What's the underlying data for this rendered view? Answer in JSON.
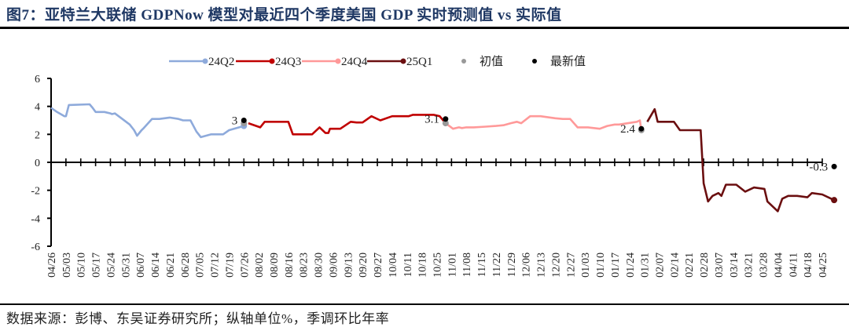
{
  "title": "图7：亚特兰大联储 GDPNow 模型对最近四个季度美国 GDP 实时预测值 vs 实际值",
  "source": "数据来源：彭博、东吴证券研究所；纵轴单位%，季调环比年率",
  "chart_data": {
    "type": "line",
    "title": "亚特兰大联储 GDPNow 模型对最近四个季度美国 GDP 实时预测值 vs 实际值",
    "xlabel": "",
    "ylabel": "%",
    "ylim": [
      -6,
      6
    ],
    "yticks": [
      "6",
      "4",
      "2",
      "0",
      "-2",
      "-4",
      "-6"
    ],
    "ytick_values": [
      6,
      4,
      2,
      0,
      -2,
      -4,
      -6
    ],
    "categories": [
      "04/26",
      "05/03",
      "05/10",
      "05/17",
      "05/24",
      "05/31",
      "06/07",
      "06/14",
      "06/21",
      "06/28",
      "07/05",
      "07/12",
      "07/19",
      "07/26",
      "08/02",
      "08/09",
      "08/16",
      "08/23",
      "08/30",
      "09/06",
      "09/13",
      "09/20",
      "09/27",
      "10/04",
      "10/11",
      "10/18",
      "10/25",
      "11/01",
      "11/08",
      "11/15",
      "11/22",
      "11/29",
      "12/06",
      "12/13",
      "12/20",
      "12/27",
      "01/03",
      "01/10",
      "01/17",
      "01/24",
      "01/31",
      "02/07",
      "02/14",
      "02/21",
      "02/28",
      "03/07",
      "03/14",
      "03/21",
      "03/28",
      "04/04",
      "04/11",
      "04/18",
      "04/25"
    ],
    "legend": [
      "24Q2",
      "24Q3",
      "24Q4",
      "25Q1",
      "初值",
      "最新值"
    ],
    "legend_position": "top",
    "grid": false,
    "series": [
      {
        "name": "24Q2",
        "color": "#8eaadb",
        "x": [
          0,
          0.4,
          0.9,
          1.0,
          1.2,
          2.6,
          2.8,
          3.0,
          3.6,
          4.0,
          4.1,
          4.3,
          4.8,
          5.3,
          5.6,
          5.8,
          6.1,
          6.2,
          6.8,
          7.3,
          8.0,
          8.6,
          8.9,
          9.4,
          9.8,
          10.1,
          10.8,
          11.2,
          11.6,
          12.0,
          13.0
        ],
        "values": [
          3.9,
          3.6,
          3.3,
          3.3,
          4.1,
          4.15,
          3.9,
          3.6,
          3.6,
          3.5,
          3.45,
          3.5,
          3.1,
          2.7,
          2.3,
          1.9,
          2.3,
          2.4,
          3.1,
          3.1,
          3.2,
          3.1,
          3.0,
          3.0,
          2.2,
          1.8,
          2.0,
          2.0,
          2.0,
          2.3,
          2.6
        ]
      },
      {
        "name": "24Q3",
        "color": "#c00000",
        "x": [
          13.3,
          14.1,
          14.4,
          15.1,
          16.0,
          16.3,
          17.0,
          17.6,
          18.1,
          18.5,
          18.7,
          18.8,
          19.5,
          20.2,
          20.6,
          21.0,
          21.6,
          22.2,
          23.0,
          23.5,
          24.1,
          24.4,
          25.0,
          25.8,
          26.2,
          26.6
        ],
        "values": [
          2.8,
          2.5,
          2.9,
          2.9,
          2.9,
          2.0,
          2.0,
          2.0,
          2.5,
          2.1,
          2.1,
          2.4,
          2.4,
          2.9,
          2.85,
          2.85,
          3.3,
          3.0,
          3.3,
          3.3,
          3.3,
          3.4,
          3.4,
          3.4,
          3.3,
          2.8
        ]
      },
      {
        "name": "24Q4",
        "color": "#ff9999",
        "x": [
          26.6,
          27.1,
          27.5,
          27.7,
          28.0,
          28.5,
          29.3,
          30.0,
          30.5,
          31.0,
          31.4,
          31.7,
          32.3,
          33.0,
          34.0,
          34.5,
          35.0,
          35.5,
          36.2,
          37.0,
          37.5,
          38.0,
          38.3,
          39.5,
          39.7,
          39.8
        ],
        "values": [
          2.8,
          2.4,
          2.5,
          2.45,
          2.5,
          2.5,
          2.55,
          2.6,
          2.65,
          2.8,
          2.9,
          2.8,
          3.3,
          3.3,
          3.15,
          3.1,
          3.1,
          2.5,
          2.5,
          2.4,
          2.6,
          2.7,
          2.7,
          2.9,
          3.0,
          2.3
        ]
      },
      {
        "name": "25Q1",
        "color": "#6b0f10",
        "x": [
          40.2,
          40.7,
          40.9,
          41.2,
          42.0,
          42.4,
          42.6,
          43.8,
          44.0,
          44.3,
          44.6,
          45.0,
          45.2,
          45.5,
          46.2,
          46.8,
          47.4,
          48.1,
          48.3,
          49.0,
          49.3,
          49.7,
          50.3,
          51.0,
          51.3,
          52.0,
          52.8
        ],
        "values": [
          2.9,
          3.8,
          2.9,
          2.9,
          2.9,
          2.3,
          2.3,
          2.3,
          -1.5,
          -2.8,
          -2.4,
          -2.2,
          -2.4,
          -1.6,
          -1.6,
          -2.1,
          -1.8,
          -1.9,
          -2.8,
          -3.5,
          -2.6,
          -2.4,
          -2.4,
          -2.5,
          -2.2,
          -2.3,
          -2.7
        ]
      }
    ],
    "initial_values": {
      "name": "初值",
      "color": "#999999",
      "points": [
        {
          "x": 13.0,
          "value": 2.8
        },
        {
          "x": 26.6,
          "value": 2.8
        },
        {
          "x": 39.8,
          "value": 2.3
        }
      ]
    },
    "latest_values": {
      "name": "最新值",
      "color": "#000000",
      "points": [
        {
          "x": 13.0,
          "value": 3.0,
          "label": "3"
        },
        {
          "x": 26.6,
          "value": 3.1,
          "label": "3.1"
        },
        {
          "x": 39.8,
          "value": 2.4,
          "label": "2.4"
        },
        {
          "x": 52.8,
          "value": -0.3,
          "label": "-0.3"
        }
      ]
    },
    "endpoint_markers": [
      {
        "series": "24Q2",
        "x": 13.0,
        "value": 2.6
      },
      {
        "series": "25Q1",
        "x": 52.8,
        "value": -2.7
      }
    ]
  }
}
